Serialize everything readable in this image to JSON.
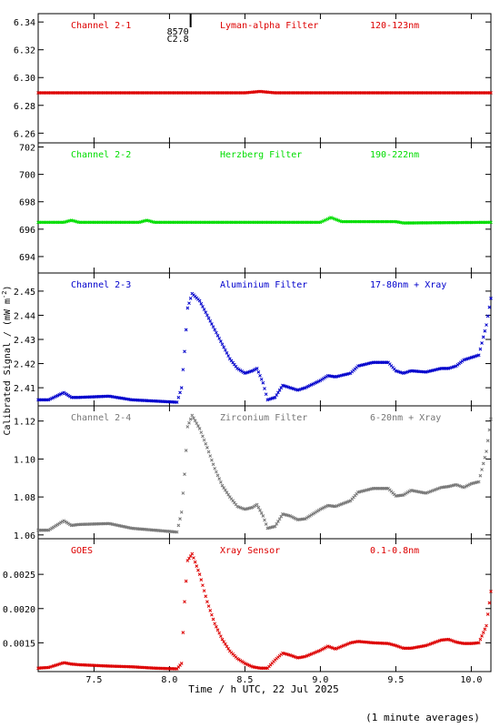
{
  "figure": {
    "x_axis_label": "Time / h UTC, 22 Jul 2025",
    "y_axis_label": "Calibrated Signal / (mW m",
    "y_axis_label_sup": "-2",
    "y_axis_label_close": ")",
    "footnote": "(1 minute averages)",
    "marker_annotation": {
      "x": 8.14,
      "line1": "8570",
      "line2": "C2.8"
    }
  },
  "chart_data": [
    {
      "type": "scatter",
      "channel": "Channel 2-1",
      "filter": "Lyman-alpha Filter",
      "band": "120-123nm",
      "color": "#dd0000",
      "xlim": [
        7.13,
        10.13
      ],
      "ylim": [
        6.253,
        6.346
      ],
      "yticks": [
        6.26,
        6.28,
        6.3,
        6.32,
        6.34
      ],
      "tick_decimals": 2,
      "series": [
        {
          "x": [
            7.13,
            8.5,
            8.55,
            8.6,
            8.65,
            8.7,
            10.13
          ],
          "y": [
            6.289,
            6.289,
            6.2895,
            6.29,
            6.2895,
            6.289,
            6.289
          ]
        }
      ]
    },
    {
      "type": "scatter",
      "channel": "Channel 2-2",
      "filter": "Herzberg Filter",
      "band": "190-222nm",
      "color": "#00dd00",
      "xlim": [
        7.13,
        10.13
      ],
      "ylim": [
        692.8,
        702.3
      ],
      "yticks": [
        694,
        696,
        698,
        700,
        702
      ],
      "tick_decimals": 0,
      "series": [
        {
          "x": [
            7.13,
            7.3,
            7.35,
            7.4,
            7.8,
            7.85,
            7.9,
            9.0,
            9.07,
            9.14,
            9.5,
            9.55,
            10.13
          ],
          "y": [
            696.5,
            696.5,
            696.65,
            696.5,
            696.5,
            696.65,
            696.5,
            696.5,
            696.85,
            696.55,
            696.55,
            696.45,
            696.5
          ]
        }
      ]
    },
    {
      "type": "scatter",
      "channel": "Channel 2-3",
      "filter": "Aluminium Filter",
      "band": "17-80nm + Xray",
      "color": "#0000cc",
      "xlim": [
        7.13,
        10.13
      ],
      "ylim": [
        2.4025,
        2.4575
      ],
      "yticks": [
        2.41,
        2.42,
        2.43,
        2.44,
        2.45
      ],
      "tick_decimals": 2,
      "series": [
        {
          "x": [
            7.13,
            7.2,
            7.3,
            7.35,
            7.4,
            7.6,
            7.75,
            7.9,
            8.05,
            8.08,
            8.1,
            8.12,
            8.15,
            8.2,
            8.25,
            8.3,
            8.35,
            8.4,
            8.45,
            8.5,
            8.55,
            8.58,
            8.62,
            8.65,
            8.7,
            8.75,
            8.8,
            8.85,
            8.9,
            9.0,
            9.05,
            9.1,
            9.2,
            9.25,
            9.35,
            9.45,
            9.5,
            9.55,
            9.6,
            9.7,
            9.8,
            9.85,
            9.9,
            9.95,
            10.0,
            10.05,
            10.1,
            10.13
          ],
          "y": [
            2.405,
            2.405,
            2.408,
            2.406,
            2.406,
            2.4065,
            2.405,
            2.4045,
            2.404,
            2.41,
            2.425,
            2.443,
            2.449,
            2.446,
            2.44,
            2.434,
            2.428,
            2.422,
            2.418,
            2.416,
            2.417,
            2.418,
            2.412,
            2.405,
            2.406,
            2.411,
            2.41,
            2.409,
            2.41,
            2.413,
            2.415,
            2.4145,
            2.416,
            2.419,
            2.4205,
            2.4205,
            2.417,
            2.416,
            2.417,
            2.4165,
            2.418,
            2.418,
            2.419,
            2.4215,
            2.4225,
            2.4235,
            2.436,
            2.447
          ]
        }
      ]
    },
    {
      "type": "scatter",
      "channel": "Channel 2-4",
      "filter": "Zirconium Filter",
      "band": "6-20nm + Xray",
      "color": "#777777",
      "xlim": [
        7.13,
        10.13
      ],
      "ylim": [
        1.058,
        1.128
      ],
      "yticks": [
        1.06,
        1.08,
        1.1,
        1.12
      ],
      "tick_decimals": 2,
      "series": [
        {
          "x": [
            7.13,
            7.2,
            7.3,
            7.35,
            7.4,
            7.6,
            7.75,
            7.9,
            8.05,
            8.08,
            8.1,
            8.12,
            8.15,
            8.2,
            8.25,
            8.3,
            8.35,
            8.4,
            8.45,
            8.5,
            8.55,
            8.58,
            8.62,
            8.65,
            8.7,
            8.75,
            8.8,
            8.85,
            8.9,
            9.0,
            9.05,
            9.1,
            9.2,
            9.25,
            9.35,
            9.45,
            9.5,
            9.55,
            9.6,
            9.7,
            9.8,
            9.85,
            9.9,
            9.95,
            10.0,
            10.05,
            10.1,
            10.13
          ],
          "y": [
            1.0625,
            1.0625,
            1.0675,
            1.065,
            1.0655,
            1.066,
            1.0635,
            1.0625,
            1.0615,
            1.072,
            1.092,
            1.117,
            1.123,
            1.116,
            1.106,
            1.095,
            1.086,
            1.08,
            1.075,
            1.0735,
            1.0745,
            1.076,
            1.07,
            1.0635,
            1.0645,
            1.071,
            1.07,
            1.068,
            1.0685,
            1.0735,
            1.0755,
            1.075,
            1.078,
            1.0825,
            1.0845,
            1.0845,
            1.0805,
            1.081,
            1.0835,
            1.082,
            1.085,
            1.0855,
            1.0865,
            1.085,
            1.087,
            1.088,
            1.104,
            1.121
          ]
        }
      ]
    },
    {
      "type": "scatter",
      "channel": "GOES",
      "filter": "Xray Sensor",
      "band": "0.1-0.8nm",
      "color": "#dd0000",
      "xlim": [
        7.13,
        10.13
      ],
      "ylim": [
        0.00108,
        0.00302
      ],
      "yticks": [
        0.0015,
        0.002,
        0.0025
      ],
      "tick_decimals": 4,
      "series": [
        {
          "x": [
            7.13,
            7.2,
            7.3,
            7.35,
            7.4,
            7.6,
            7.75,
            7.9,
            8.05,
            8.08,
            8.1,
            8.12,
            8.15,
            8.2,
            8.25,
            8.3,
            8.35,
            8.4,
            8.45,
            8.5,
            8.55,
            8.6,
            8.65,
            8.7,
            8.75,
            8.8,
            8.85,
            8.9,
            9.0,
            9.05,
            9.1,
            9.2,
            9.25,
            9.35,
            9.45,
            9.5,
            9.55,
            9.6,
            9.7,
            9.8,
            9.85,
            9.9,
            9.95,
            10.0,
            10.05,
            10.1,
            10.13
          ],
          "y": [
            0.00113,
            0.00114,
            0.00121,
            0.00119,
            0.00118,
            0.00116,
            0.00115,
            0.00113,
            0.00112,
            0.0012,
            0.0021,
            0.0027,
            0.0028,
            0.0025,
            0.0021,
            0.00178,
            0.00155,
            0.00138,
            0.00127,
            0.0012,
            0.00115,
            0.00113,
            0.00113,
            0.00125,
            0.00135,
            0.00132,
            0.00128,
            0.0013,
            0.00139,
            0.00145,
            0.00141,
            0.0015,
            0.00152,
            0.0015,
            0.00149,
            0.00146,
            0.00142,
            0.00142,
            0.00146,
            0.00154,
            0.00155,
            0.00151,
            0.00149,
            0.00149,
            0.0015,
            0.00175,
            0.00225
          ]
        }
      ]
    }
  ]
}
